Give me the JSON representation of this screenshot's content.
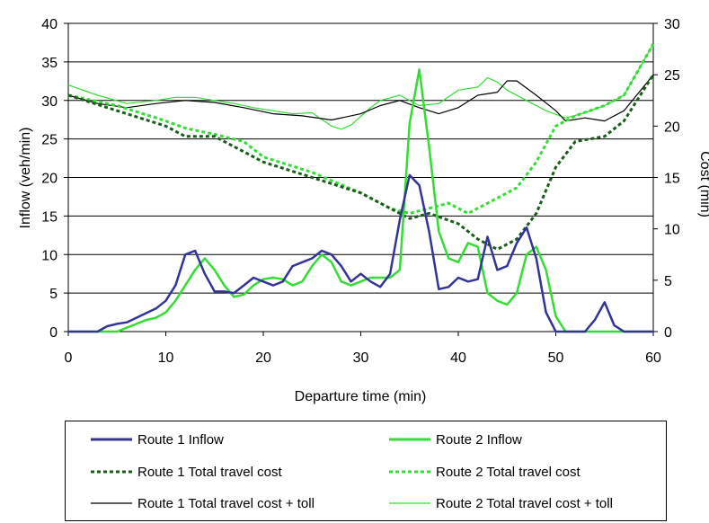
{
  "chart_data": {
    "type": "line",
    "title": "",
    "xlabel": "Departure time (min)",
    "ylabel": "Inflow (veh/min)",
    "y2label": "Cost (min)",
    "xlim": [
      0,
      60
    ],
    "ylim": [
      0,
      40
    ],
    "y2lim": [
      0,
      30
    ],
    "xticks": [
      0,
      10,
      20,
      30,
      40,
      50,
      60
    ],
    "yticks": [
      0,
      5,
      10,
      15,
      20,
      25,
      30,
      35,
      40
    ],
    "y2ticks": [
      0,
      5,
      10,
      15,
      20,
      25,
      30
    ],
    "grid": "horizontal",
    "legend_placement": "bottom",
    "series": [
      {
        "name": "Route 1 Inflow",
        "axis": "left",
        "color": "#333399",
        "style": "solid",
        "x": [
          0,
          1,
          2,
          3,
          4,
          5,
          6,
          7,
          8,
          9,
          10,
          11,
          12,
          13,
          14,
          15,
          16,
          17,
          18,
          19,
          20,
          21,
          22,
          23,
          24,
          25,
          26,
          27,
          28,
          29,
          30,
          31,
          32,
          33,
          34,
          35,
          36,
          37,
          38,
          39,
          40,
          41,
          42,
          43,
          44,
          45,
          46,
          47,
          48,
          49,
          50,
          51,
          52,
          53,
          54,
          55,
          56,
          57,
          58,
          59,
          60
        ],
        "y": [
          0,
          0,
          0,
          0,
          0.7,
          1,
          1.2,
          1.8,
          2.4,
          3,
          4,
          6,
          10,
          10.5,
          7.5,
          5.2,
          5.2,
          5,
          6,
          7,
          6.5,
          6,
          6.5,
          8.5,
          9,
          9.5,
          10.5,
          10,
          8.5,
          6.5,
          7.5,
          6.5,
          5.8,
          7.5,
          14.5,
          20.3,
          19,
          13,
          5.5,
          5.8,
          7,
          6.5,
          6.8,
          12.3,
          8,
          8.5,
          11.5,
          13.5,
          9.5,
          2.5,
          0,
          0,
          0,
          0,
          1.5,
          3.8,
          0.8,
          0,
          0,
          0,
          0
        ]
      },
      {
        "name": "Route 2 Inflow",
        "axis": "left",
        "color": "#33dd33",
        "style": "solid",
        "x": [
          0,
          1,
          2,
          3,
          4,
          5,
          6,
          7,
          8,
          9,
          10,
          11,
          12,
          13,
          14,
          15,
          16,
          17,
          18,
          19,
          20,
          21,
          22,
          23,
          24,
          25,
          26,
          27,
          28,
          29,
          30,
          31,
          32,
          33,
          34,
          35,
          36,
          37,
          38,
          39,
          40,
          41,
          42,
          43,
          44,
          45,
          46,
          47,
          48,
          49,
          50,
          51,
          52,
          53,
          54,
          55,
          56,
          57,
          58,
          59,
          60
        ],
        "y": [
          0,
          0,
          0,
          0,
          0,
          0,
          0.5,
          1,
          1.5,
          1.8,
          2.5,
          4,
          6,
          8,
          9.5,
          8,
          6,
          4.5,
          4.8,
          6,
          6.8,
          7,
          6.8,
          6,
          6.5,
          8.5,
          10,
          9,
          6.5,
          6,
          6.5,
          7,
          7,
          7,
          8,
          27,
          34,
          24,
          13,
          9.5,
          9,
          11.5,
          11,
          5,
          4,
          3.5,
          5,
          10,
          11,
          8,
          2,
          0,
          0,
          0,
          0,
          0,
          0,
          0,
          0,
          0,
          0
        ]
      },
      {
        "name": "Route 1 Total travel cost",
        "axis": "right",
        "color": "#1a5c1a",
        "style": "dotted",
        "x": [
          0,
          5,
          10,
          12,
          15,
          18,
          20,
          25,
          30,
          33,
          35,
          37,
          40,
          42,
          44,
          46,
          48,
          50,
          52,
          55,
          57,
          60
        ],
        "y": [
          23,
          21.5,
          20,
          19,
          19,
          17.5,
          16.5,
          15,
          13.5,
          12,
          11,
          11.5,
          10.5,
          9,
          8,
          9,
          11.5,
          16,
          18.5,
          19,
          20.5,
          25
        ]
      },
      {
        "name": "Route 2 Total travel cost",
        "axis": "right",
        "color": "#33dd33",
        "style": "dotted",
        "x": [
          0,
          5,
          10,
          12,
          15,
          18,
          20,
          25,
          30,
          33,
          35,
          37,
          39,
          41,
          42,
          44,
          46,
          48,
          50,
          52,
          55,
          57,
          60
        ],
        "y": [
          23,
          22,
          20.5,
          19.8,
          19.2,
          18.5,
          17,
          15.5,
          13.5,
          12,
          11.5,
          12,
          12.5,
          11.5,
          12,
          13,
          14,
          16.5,
          20,
          21,
          22,
          23,
          28
        ]
      },
      {
        "name": "Route 1 Total travel cost + toll",
        "axis": "right",
        "color": "#000000",
        "style": "thin",
        "x": [
          0,
          3,
          6,
          9,
          12,
          15,
          18,
          21,
          24,
          27,
          30,
          32,
          34,
          36,
          38,
          40,
          42,
          44,
          45,
          46,
          48,
          50,
          51,
          53,
          55,
          57,
          60
        ],
        "y": [
          23,
          22.2,
          21.8,
          22.2,
          22.5,
          22.3,
          21.8,
          21.2,
          21,
          20.6,
          21.2,
          22,
          22.5,
          21.8,
          21.2,
          21.8,
          23,
          23.3,
          24.4,
          24.4,
          23,
          21.5,
          20.5,
          20.8,
          20.5,
          21.5,
          25
        ]
      },
      {
        "name": "Route 2 Total travel cost + toll",
        "axis": "right",
        "color": "#33dd33",
        "style": "thin",
        "x": [
          0,
          3,
          6,
          9,
          11,
          13,
          15,
          17,
          19,
          21,
          23,
          25,
          27,
          28,
          29,
          31,
          32,
          34,
          36,
          38,
          40,
          42,
          43,
          44,
          45,
          47,
          49,
          51,
          53,
          55,
          57,
          60
        ],
        "y": [
          24,
          23,
          22.2,
          22.5,
          22.8,
          22.8,
          22.5,
          22.2,
          21.8,
          21.5,
          21.2,
          21.3,
          20,
          19.7,
          20.1,
          21.8,
          22.5,
          23,
          22,
          22.2,
          23.5,
          23.8,
          24.7,
          24.3,
          23.5,
          22.5,
          21.5,
          20.8,
          21.3,
          22,
          23,
          28
        ]
      }
    ]
  },
  "legend": {
    "items": [
      "Route 1 Inflow",
      "Route 2 Inflow",
      "Route 1 Total travel cost",
      "Route 2 Total travel cost",
      "Route 1 Total travel cost + toll",
      "Route 2 Total travel cost + toll"
    ]
  }
}
